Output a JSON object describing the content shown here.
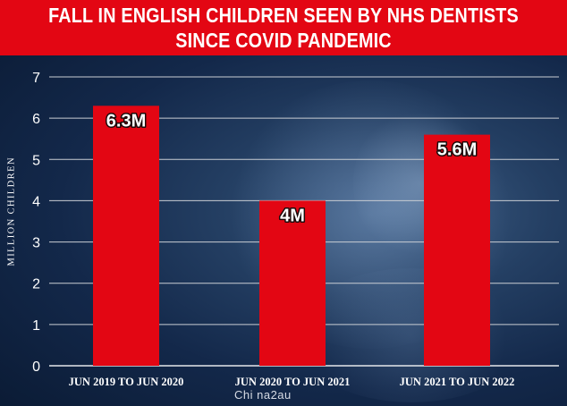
{
  "chart_data": {
    "type": "bar",
    "title": "FALL IN ENGLISH CHILDREN SEEN BY NHS DENTISTS",
    "subtitle": "SINCE COVID PANDEMIC",
    "ylabel": "MILLION CHILDREN",
    "xlabel": "",
    "categories": [
      "JUN 2019 TO JUN 2020",
      "JUN 2020 TO JUN 2021",
      "JUN 2021 TO JUN 2022"
    ],
    "values": [
      6.3,
      4,
      5.6
    ],
    "data_labels": [
      "6.3M",
      "4M",
      "5.6M"
    ],
    "ylim": [
      0,
      7
    ],
    "yticks": [
      0,
      1,
      2,
      3,
      4,
      5,
      6,
      7
    ],
    "grid": true,
    "legend": "none"
  },
  "colors": {
    "bar": "#e30613",
    "title_bar": "#e30613",
    "grid": "#c9cdd3",
    "text": "#ffffff"
  },
  "watermark": "Chi na2au"
}
